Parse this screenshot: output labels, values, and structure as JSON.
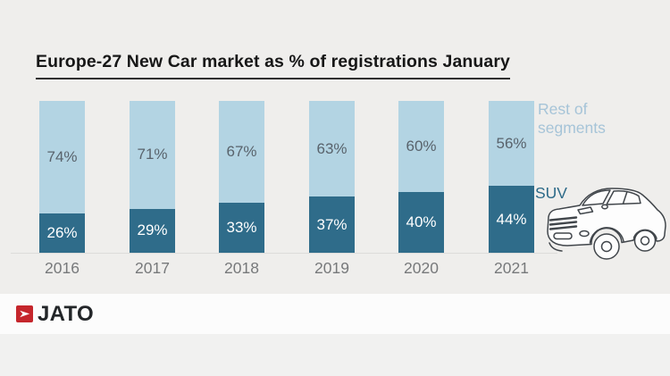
{
  "title": "Europe-27 New Car market as % of registrations January",
  "chart_data": {
    "type": "bar",
    "stacked": true,
    "title": "Europe-27 New Car market as % of registrations January",
    "categories": [
      "2016",
      "2017",
      "2018",
      "2019",
      "2020",
      "2021"
    ],
    "series": [
      {
        "name": "SUV",
        "values": [
          26,
          29,
          33,
          37,
          40,
          44
        ],
        "color": "#2f6c8a",
        "label_color": "#ffffff"
      },
      {
        "name": "Rest of segments",
        "values": [
          74,
          71,
          67,
          63,
          60,
          56
        ],
        "color": "#b3d4e3",
        "label_color": "#59636c"
      }
    ],
    "unit": "%",
    "ylim": [
      0,
      100
    ],
    "grid": false,
    "legend_position": "right"
  },
  "legend": {
    "rest_of_segments": "Rest of segments",
    "suv": "SUV"
  },
  "footer": {
    "logo_text": "JATO"
  },
  "colors": {
    "background": "#efeeec",
    "suv_bar": "#2f6c8a",
    "rest_bar": "#b3d4e3",
    "legend_rest_text": "#a6c4d8",
    "legend_suv_text": "#2d6a88",
    "axis_label": "#77797b",
    "title_text": "#171717",
    "logo_red": "#c5262c",
    "footer_band": "#fcfcfc"
  }
}
